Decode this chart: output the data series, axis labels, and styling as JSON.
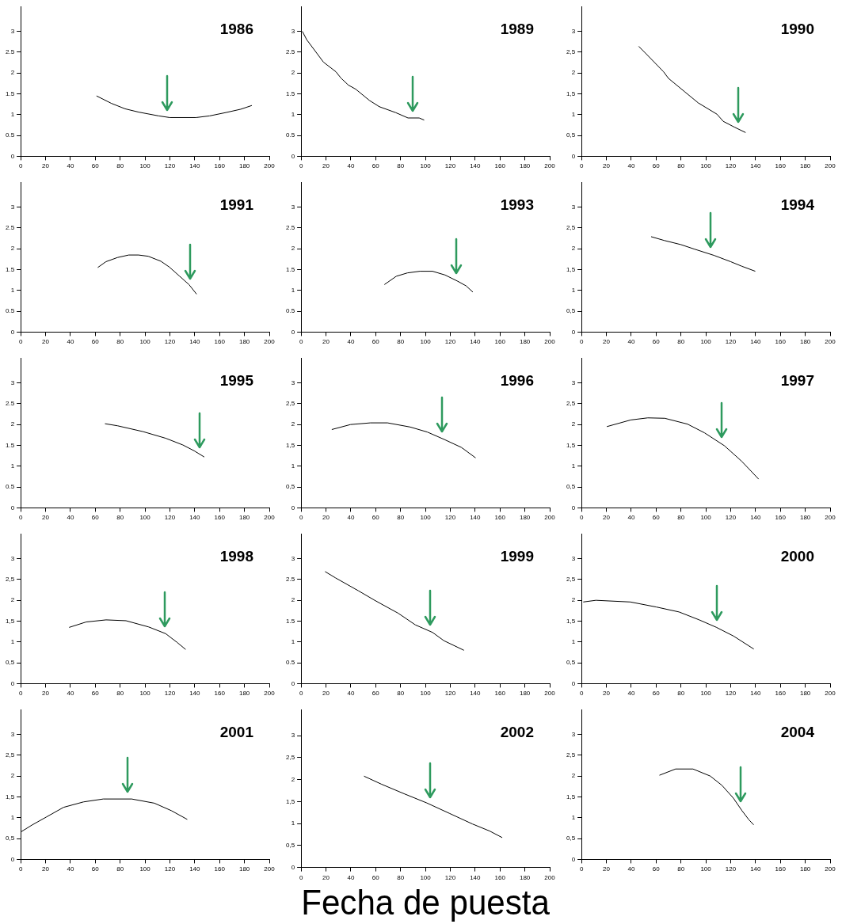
{
  "chart_data": [
    {
      "type": "line",
      "title": "1986",
      "x": [
        61,
        73,
        84,
        95,
        111,
        120,
        141,
        152,
        165,
        177,
        186
      ],
      "values": [
        1.45,
        1.27,
        1.14,
        1.06,
        0.97,
        0.93,
        0.93,
        0.97,
        1.05,
        1.13,
        1.22
      ],
      "color": "#000000",
      "xlim": [
        0,
        200
      ],
      "xticks": [
        0,
        20,
        40,
        60,
        80,
        100,
        120,
        140,
        160,
        180,
        200
      ],
      "ylim": [
        0,
        3.6
      ],
      "yticks": [
        0,
        0.5,
        1,
        1.5,
        2,
        2.5,
        3
      ],
      "ref_lines": [
        {
          "axis": "x",
          "value": 118,
          "color": "#2e9a5e"
        }
      ]
    },
    {
      "type": "line",
      "title": "1989",
      "x": [
        1,
        4.5,
        18,
        28,
        32,
        38,
        44,
        55,
        63,
        76,
        86,
        95,
        99
      ],
      "values": [
        3.0,
        2.8,
        2.26,
        2.03,
        1.88,
        1.71,
        1.61,
        1.34,
        1.19,
        1.05,
        0.92,
        0.92,
        0.87
      ],
      "color": "#000000",
      "xlim": [
        0,
        200
      ],
      "xticks": [
        0,
        20,
        40,
        60,
        80,
        100,
        120,
        140,
        160,
        180,
        200
      ],
      "ylim": [
        0,
        3.6
      ],
      "yticks": [
        0,
        0.5,
        1,
        1.5,
        2,
        2.5,
        3
      ],
      "ref_lines": [
        {
          "axis": "x",
          "value": 90,
          "color": "#2e9a5e"
        }
      ]
    },
    {
      "type": "line",
      "title": "1990",
      "x": [
        46,
        52,
        66,
        70,
        83,
        94,
        109,
        114,
        123,
        132
      ],
      "values": [
        2.64,
        2.46,
        2.03,
        1.87,
        1.55,
        1.28,
        1.01,
        0.84,
        0.7,
        0.57
      ],
      "color": "#000000",
      "xlim": [
        0,
        200
      ],
      "xticks": [
        0,
        20,
        40,
        60,
        80,
        100,
        120,
        140,
        160,
        180,
        200
      ],
      "ylim": [
        0,
        3.6
      ],
      "yticks": [
        0,
        {
          "value": 0.5,
          "label": "0,5"
        },
        1,
        {
          "value": 1.5,
          "label": "1,5"
        },
        2,
        {
          "value": 2.5,
          "label": "2,5"
        },
        3
      ],
      "ref_lines": [
        {
          "axis": "x",
          "value": 126,
          "color": "#2e9a5e"
        }
      ]
    },
    {
      "type": "line",
      "title": "1991",
      "x": [
        62,
        68.6,
        77.9,
        86.9,
        94.8,
        102.6,
        112.8,
        119.6,
        127.5,
        135.4,
        141.5
      ],
      "values": [
        1.55,
        1.69,
        1.79,
        1.85,
        1.85,
        1.82,
        1.7,
        1.56,
        1.35,
        1.14,
        0.91
      ],
      "color": "#000000",
      "xlim": [
        0,
        200
      ],
      "xticks": [
        0,
        20,
        40,
        60,
        80,
        100,
        120,
        140,
        160,
        180,
        200
      ],
      "ylim": [
        0,
        3.6
      ],
      "yticks": [
        0,
        0.5,
        1,
        1.5,
        2,
        2.5,
        3
      ],
      "ref_lines": [
        {
          "axis": "x",
          "value": 136,
          "color": "#2e9a5e"
        }
      ]
    },
    {
      "type": "line",
      "title": "1993",
      "x": [
        67,
        76.6,
        85.5,
        95.6,
        105.7,
        115.8,
        126,
        132.7,
        138.2
      ],
      "values": [
        1.14,
        1.34,
        1.42,
        1.46,
        1.46,
        1.37,
        1.22,
        1.11,
        0.96
      ],
      "color": "#000000",
      "xlim": [
        0,
        200
      ],
      "xticks": [
        0,
        20,
        40,
        60,
        80,
        100,
        120,
        140,
        160,
        180,
        200
      ],
      "ylim": [
        0,
        3.6
      ],
      "yticks": [
        0,
        0.5,
        1,
        1.5,
        2,
        2.5,
        3
      ],
      "ref_lines": [
        {
          "axis": "x",
          "value": 125,
          "color": "#2e9a5e"
        }
      ]
    },
    {
      "type": "line",
      "title": "1994",
      "x": [
        56,
        66.4,
        79.9,
        91,
        106.7,
        120,
        129,
        139.8
      ],
      "values": [
        2.29,
        2.2,
        2.1,
        1.99,
        1.84,
        1.69,
        1.58,
        1.46
      ],
      "color": "#000000",
      "xlim": [
        0,
        200
      ],
      "xticks": [
        0,
        20,
        40,
        60,
        80,
        100,
        120,
        140,
        160,
        180,
        200
      ],
      "ylim": [
        0,
        3.6
      ],
      "yticks": [
        0,
        {
          "value": 0.5,
          "label": "0,5"
        },
        1,
        {
          "value": 1.5,
          "label": "1,5"
        },
        2,
        {
          "value": 2.5,
          "label": "2,5"
        },
        3
      ],
      "ref_lines": [
        {
          "axis": "x",
          "value": 104,
          "color": "#2e9a5e"
        }
      ]
    },
    {
      "type": "line",
      "title": "1995",
      "x": [
        67.8,
        77.9,
        98.4,
        116.7,
        130.4,
        139.5,
        147.7
      ],
      "values": [
        2.02,
        1.97,
        1.83,
        1.67,
        1.51,
        1.37,
        1.22
      ],
      "color": "#000000",
      "xlim": [
        0,
        200
      ],
      "xticks": [
        0,
        20,
        40,
        60,
        80,
        100,
        120,
        140,
        160,
        180,
        200
      ],
      "ylim": [
        0,
        3.6
      ],
      "yticks": [
        0,
        0.5,
        1,
        1.5,
        2,
        2.5,
        3
      ],
      "ref_lines": [
        {
          "axis": "x",
          "value": 144,
          "color": "#2e9a5e"
        }
      ]
    },
    {
      "type": "line",
      "title": "1996",
      "x": [
        24.7,
        39.8,
        55.8,
        69.5,
        87.8,
        101.5,
        115.3,
        129,
        140.4
      ],
      "values": [
        1.88,
        2.0,
        2.04,
        2.04,
        1.94,
        1.82,
        1.64,
        1.45,
        1.2
      ],
      "color": "#000000",
      "xlim": [
        0,
        200
      ],
      "xticks": [
        0,
        20,
        40,
        60,
        80,
        100,
        120,
        140,
        160,
        180,
        200
      ],
      "ylim": [
        0,
        3.6
      ],
      "yticks": [
        0,
        {
          "value": 0.5,
          "label": "0,5"
        },
        1,
        {
          "value": 1.5,
          "label": "1,5"
        },
        2,
        {
          "value": 2.5,
          "label": "2,5"
        },
        3
      ],
      "ref_lines": [
        {
          "axis": "x",
          "value": 113.5,
          "color": "#2e9a5e"
        }
      ]
    },
    {
      "type": "line",
      "title": "1997",
      "x": [
        20.4,
        39.6,
        53.3,
        67,
        85.3,
        99,
        115,
        128.8,
        142.5
      ],
      "values": [
        1.95,
        2.11,
        2.16,
        2.15,
        2.01,
        1.8,
        1.49,
        1.12,
        0.69
      ],
      "color": "#000000",
      "xlim": [
        0,
        200
      ],
      "xticks": [
        0,
        20,
        40,
        60,
        80,
        100,
        120,
        140,
        160,
        180,
        200
      ],
      "ylim": [
        0,
        3.6
      ],
      "yticks": [
        0,
        {
          "value": 0.5,
          "label": "0,5"
        },
        1,
        {
          "value": 1.5,
          "label": "1,5"
        },
        2,
        {
          "value": 2.5,
          "label": "2,5"
        },
        3
      ],
      "ref_lines": [
        {
          "axis": "x",
          "value": 113,
          "color": "#2e9a5e"
        }
      ]
    },
    {
      "type": "line",
      "title": "1998",
      "x": [
        39,
        52.7,
        68.7,
        84.7,
        103,
        116.6,
        125.8,
        132.7
      ],
      "values": [
        1.35,
        1.48,
        1.53,
        1.51,
        1.36,
        1.2,
        0.99,
        0.82
      ],
      "color": "#000000",
      "xlim": [
        0,
        200
      ],
      "xticks": [
        0,
        20,
        40,
        60,
        80,
        100,
        120,
        140,
        160,
        180,
        200
      ],
      "ylim": [
        0,
        3.6
      ],
      "yticks": [
        0,
        {
          "value": 0.5,
          "label": "0,5"
        },
        1,
        {
          "value": 1.5,
          "label": "1,5"
        },
        2,
        {
          "value": 2.5,
          "label": "2,5"
        },
        3
      ],
      "ref_lines": [
        {
          "axis": "x",
          "value": 116,
          "color": "#2e9a5e"
        }
      ]
    },
    {
      "type": "line",
      "title": "1999",
      "x": [
        19.3,
        27.6,
        46,
        59.8,
        78.1,
        91.9,
        105.7,
        114.9,
        131
      ],
      "values": [
        2.69,
        2.54,
        2.23,
        1.99,
        1.69,
        1.41,
        1.23,
        1.03,
        0.8
      ],
      "color": "#000000",
      "xlim": [
        0,
        200
      ],
      "xticks": [
        0,
        20,
        40,
        60,
        80,
        100,
        120,
        140,
        160,
        180,
        200
      ],
      "ylim": [
        0,
        3.6
      ],
      "yticks": [
        0,
        0.5,
        1,
        1.5,
        2,
        2.5,
        3
      ],
      "ref_lines": [
        {
          "axis": "x",
          "value": 104,
          "color": "#2e9a5e"
        }
      ]
    },
    {
      "type": "line",
      "title": "2000",
      "x": [
        1.4,
        11.6,
        39.3,
        60.1,
        78.5,
        94.7,
        108.6,
        122.4,
        138.6
      ],
      "values": [
        1.96,
        2.0,
        1.96,
        1.84,
        1.72,
        1.53,
        1.35,
        1.14,
        0.83
      ],
      "color": "#000000",
      "xlim": [
        0,
        200
      ],
      "xticks": [
        0,
        20,
        40,
        60,
        80,
        100,
        120,
        140,
        160,
        180,
        200
      ],
      "ylim": [
        0,
        3.6
      ],
      "yticks": [
        0,
        {
          "value": 0.5,
          "label": "0,5"
        },
        1,
        {
          "value": 1.5,
          "label": "1,5"
        },
        2,
        {
          "value": 2.5,
          "label": "2,5"
        },
        3
      ],
      "ref_lines": [
        {
          "axis": "x",
          "value": 108.6,
          "color": "#2e9a5e"
        }
      ]
    },
    {
      "type": "line",
      "title": "2001",
      "x": [
        0.2,
        9.4,
        20.8,
        34.5,
        50.5,
        66.4,
        89.3,
        107.5,
        121.2,
        134
      ],
      "values": [
        0.66,
        0.83,
        1.02,
        1.25,
        1.38,
        1.45,
        1.45,
        1.35,
        1.17,
        0.96
      ],
      "color": "#000000",
      "xlim": [
        0,
        200
      ],
      "xticks": [
        0,
        20,
        40,
        60,
        80,
        100,
        120,
        140,
        160,
        180,
        200
      ],
      "ylim": [
        0,
        3.6
      ],
      "yticks": [
        0,
        {
          "value": 0.5,
          "label": "0,5"
        },
        1,
        {
          "value": 1.5,
          "label": "1,5"
        },
        2,
        {
          "value": 2.5,
          "label": "2,5"
        },
        3
      ],
      "ref_lines": [
        {
          "axis": "x",
          "value": 86,
          "color": "#2e9a5e"
        }
      ]
    },
    {
      "type": "line",
      "title": "2002",
      "xlabel": "Fecha de puesta",
      "x": [
        50.6,
        64.4,
        82.8,
        101.1,
        119.5,
        137.9,
        151.7,
        161.8
      ],
      "values": [
        2.08,
        1.9,
        1.68,
        1.47,
        1.23,
        0.99,
        0.83,
        0.68
      ],
      "color": "#000000",
      "xlim": [
        0,
        200
      ],
      "xticks": [
        0,
        20,
        40,
        60,
        80,
        100,
        120,
        140,
        160,
        180,
        200
      ],
      "ylim": [
        0,
        3.6
      ],
      "yticks": [
        0,
        {
          "value": 0.5,
          "label": "0,5"
        },
        1,
        {
          "value": 1.5,
          "label": "1,5"
        },
        2,
        {
          "value": 2.5,
          "label": "2,5"
        },
        3
      ],
      "ref_lines": [
        {
          "axis": "x",
          "value": 104,
          "color": "#2e9a5e"
        }
      ]
    },
    {
      "type": "line",
      "title": "2004",
      "x": [
        62.7,
        75.7,
        89.7,
        103.6,
        112.9,
        122.2,
        129.1,
        134.7,
        138.5
      ],
      "values": [
        2.02,
        2.17,
        2.17,
        2.0,
        1.78,
        1.47,
        1.17,
        0.95,
        0.83
      ],
      "color": "#000000",
      "xlim": [
        0,
        200
      ],
      "xticks": [
        0,
        20,
        40,
        60,
        80,
        100,
        120,
        140,
        160,
        180,
        200
      ],
      "ylim": [
        0,
        3.6
      ],
      "yticks": [
        0,
        {
          "value": 0.5,
          "label": "0,5"
        },
        1,
        {
          "value": 1.5,
          "label": "1,5"
        },
        2,
        {
          "value": 2.5,
          "label": "2,5"
        },
        3
      ],
      "ref_lines": [
        {
          "axis": "x",
          "value": 128,
          "color": "#2e9a5e"
        }
      ]
    }
  ]
}
